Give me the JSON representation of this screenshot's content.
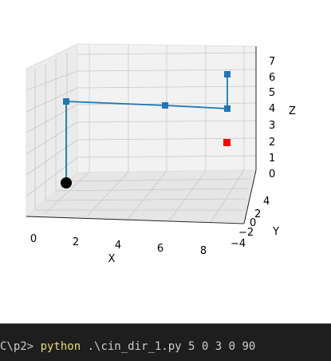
{
  "figure": {
    "axis_labels": {
      "x": "X",
      "y": "Y",
      "z": "Z"
    },
    "x_ticks": [
      "0",
      "2",
      "4",
      "6",
      "8"
    ],
    "y_ticks": [
      "4",
      "2",
      "0",
      "−2",
      "−4"
    ],
    "z_ticks": [
      "0",
      "1",
      "2",
      "3",
      "4",
      "5",
      "6",
      "7"
    ],
    "colors": {
      "line": "#1f77b4",
      "base": "#000000",
      "end_effector": "#ff0000",
      "pane": "#f2f2f2",
      "grid": "#c8c8c8"
    }
  },
  "chart_data": {
    "type": "line3d",
    "xlabel": "X",
    "ylabel": "Y",
    "zlabel": "Z",
    "xlim": [
      0,
      8
    ],
    "ylim": [
      -4,
      4
    ],
    "zlim": [
      0,
      7
    ],
    "series": [
      {
        "points": [
          [
            0,
            0,
            0
          ],
          [
            0,
            0,
            5
          ],
          [
            5,
            0,
            5
          ],
          [
            8,
            0,
            5
          ],
          [
            8,
            0,
            7
          ]
        ]
      }
    ],
    "markers": [
      {
        "point": [
          0,
          0,
          0
        ],
        "color": "#000000",
        "shape": "circle"
      },
      {
        "point": [
          8,
          0,
          3
        ],
        "color": "#ff0000",
        "shape": "square"
      }
    ]
  },
  "terminal": {
    "prompt": "C\\p2> ",
    "command": "python",
    "args": " .\\cin_dir_1.py 5 0 3 0 90"
  }
}
